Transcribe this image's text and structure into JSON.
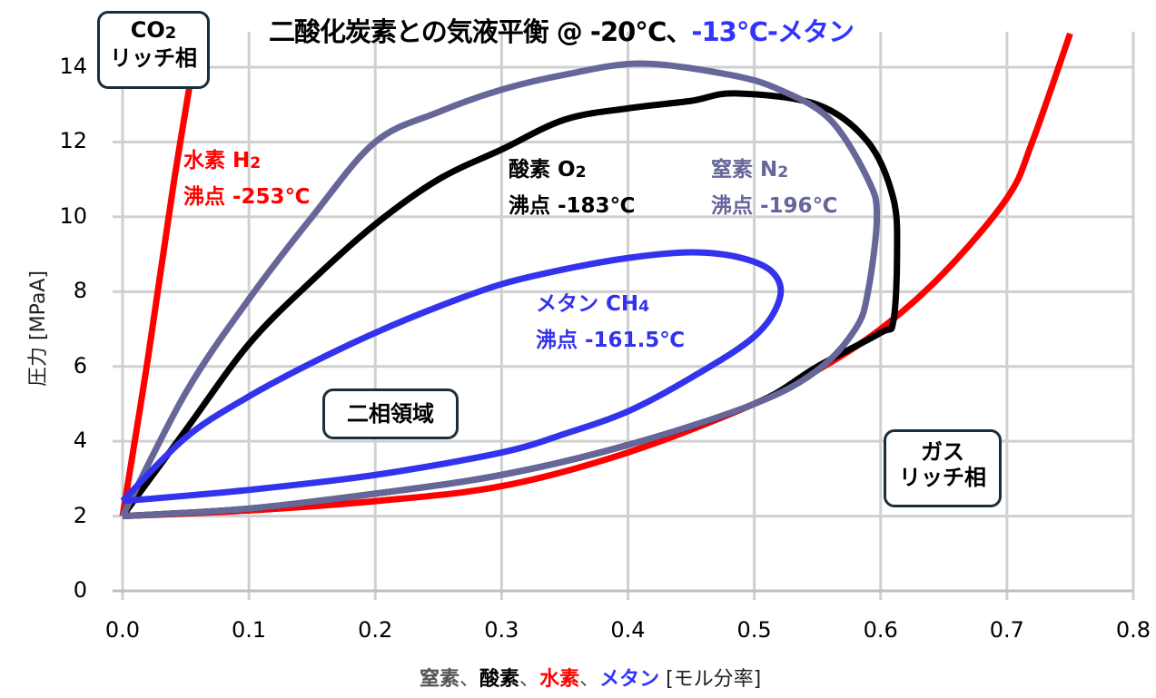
{
  "title": {
    "main": "二酸化炭素との気液平衡 @ -20℃、",
    "suffix": "-13℃-メタン",
    "suffix_color": "#3333ff"
  },
  "axes": {
    "ylabel": "圧力 [MPaA]",
    "xlabel_parts": [
      {
        "text": "窒素",
        "color": "#555555"
      },
      {
        "text": "、",
        "color": "#555555"
      },
      {
        "text": "酸素",
        "color": "#000000"
      },
      {
        "text": "、",
        "color": "#555555"
      },
      {
        "text": "水素",
        "color": "#ff0000"
      },
      {
        "text": "、",
        "color": "#555555"
      },
      {
        "text": "メタン",
        "color": "#3333ff"
      },
      {
        "text": " [モル分率]",
        "color": "#222222"
      }
    ],
    "y_ticks": [
      "0",
      "2",
      "4",
      "6",
      "8",
      "10",
      "12",
      "14"
    ],
    "x_ticks": [
      "0.0",
      "0.1",
      "0.2",
      "0.3",
      "0.4",
      "0.5",
      "0.6",
      "0.7",
      "0.8"
    ]
  },
  "annotations": {
    "hydrogen": {
      "line1": "水素 H",
      "sub1": "2",
      "line2": "沸点 -253℃",
      "color": "#ff0000"
    },
    "oxygen": {
      "line1": "酸素 O",
      "sub1": "2",
      "line2": "沸点 -183℃",
      "color": "#000000"
    },
    "nitrogen": {
      "line1": "窒素 N",
      "sub1": "2",
      "line2": "沸点 -196℃",
      "color": "#666699"
    },
    "methane": {
      "line1": "メタン CH",
      "sub1": "4",
      "line2": "沸点 -161.5℃",
      "color": "#3333ee"
    }
  },
  "boxes": {
    "co2_rich": {
      "line1": "CO",
      "sub1": "2",
      "line2": "リッチ相"
    },
    "two_phase": {
      "line1": "二相領域"
    },
    "gas_rich": {
      "line1": "ガス",
      "line2": "リッチ相"
    }
  },
  "chart_data": {
    "type": "line",
    "title": "二酸化炭素との気液平衡 @ -20℃、-13℃-メタン",
    "xlabel": "窒素、酸素、水素、メタン [モル分率]",
    "ylabel": "圧力 [MPaA]",
    "xlim": [
      0,
      0.8
    ],
    "ylim": [
      0,
      15
    ],
    "x_ticks": [
      0.0,
      0.1,
      0.2,
      0.3,
      0.4,
      0.5,
      0.6,
      0.7,
      0.8
    ],
    "y_ticks": [
      0,
      2,
      4,
      6,
      8,
      10,
      12,
      14
    ],
    "grid": true,
    "legend": "none (inline annotations)",
    "series": [
      {
        "name": "水素 H2 (沸点 -253℃)",
        "color": "#ff0000",
        "liquid_branch": {
          "x": [
            0.0,
            0.02,
            0.04,
            0.06
          ],
          "y": [
            2.0,
            6.2,
            10.8,
            14.9
          ]
        },
        "vapor_branch": {
          "x": [
            0.0,
            0.1,
            0.2,
            0.3,
            0.4,
            0.5,
            0.55,
            0.6,
            0.65,
            0.7,
            0.72,
            0.75
          ],
          "y": [
            2.0,
            2.15,
            2.4,
            2.8,
            3.7,
            5.0,
            5.9,
            7.0,
            8.5,
            10.5,
            12.0,
            14.9
          ]
        }
      },
      {
        "name": "酸素 O2 (沸点 -183℃)",
        "color": "#000000",
        "x": [
          0.0,
          0.05,
          0.1,
          0.15,
          0.2,
          0.25,
          0.3,
          0.35,
          0.4,
          0.45,
          0.485,
          0.55,
          0.59,
          0.61,
          0.613,
          0.61,
          0.6,
          0.55,
          0.5,
          0.4,
          0.3,
          0.2,
          0.1,
          0.0
        ],
        "y": [
          2.0,
          4.3,
          6.6,
          8.3,
          9.8,
          11.0,
          11.8,
          12.6,
          12.9,
          13.1,
          13.3,
          13.0,
          12.0,
          10.5,
          9.0,
          7.2,
          6.9,
          6.0,
          5.0,
          3.9,
          3.1,
          2.6,
          2.2,
          2.0
        ]
      },
      {
        "name": "窒素 N2 (沸点 -196℃)",
        "color": "#666699",
        "x": [
          0.0,
          0.05,
          0.1,
          0.15,
          0.2,
          0.25,
          0.3,
          0.35,
          0.41,
          0.48,
          0.52,
          0.56,
          0.59,
          0.597,
          0.59,
          0.58,
          0.55,
          0.5,
          0.4,
          0.3,
          0.2,
          0.1,
          0.0
        ],
        "y": [
          2.0,
          5.3,
          7.8,
          10.0,
          12.0,
          12.8,
          13.4,
          13.8,
          14.1,
          13.8,
          13.4,
          12.6,
          11.0,
          10.0,
          8.0,
          7.0,
          5.9,
          5.0,
          3.9,
          3.1,
          2.6,
          2.2,
          2.0
        ]
      },
      {
        "name": "メタン CH4 (沸点 -161.5℃)",
        "color": "#3333ee",
        "x": [
          0.0,
          0.05,
          0.1,
          0.15,
          0.2,
          0.25,
          0.3,
          0.35,
          0.4,
          0.45,
          0.49,
          0.515,
          0.52,
          0.5,
          0.45,
          0.4,
          0.35,
          0.3,
          0.2,
          0.1,
          0.0
        ],
        "y": [
          2.4,
          4.1,
          5.2,
          6.1,
          6.9,
          7.6,
          8.2,
          8.6,
          8.9,
          9.05,
          8.9,
          8.5,
          7.8,
          6.8,
          5.7,
          4.8,
          4.2,
          3.7,
          3.1,
          2.7,
          2.4
        ]
      }
    ],
    "annotations": [
      "CO2 リッチ相",
      "二相領域",
      "ガス リッチ相",
      "水素 H2 沸点 -253℃",
      "酸素 O2 沸点 -183℃",
      "窒素 N2 沸点 -196℃",
      "メタン CH4 沸点 -161.5℃"
    ]
  }
}
